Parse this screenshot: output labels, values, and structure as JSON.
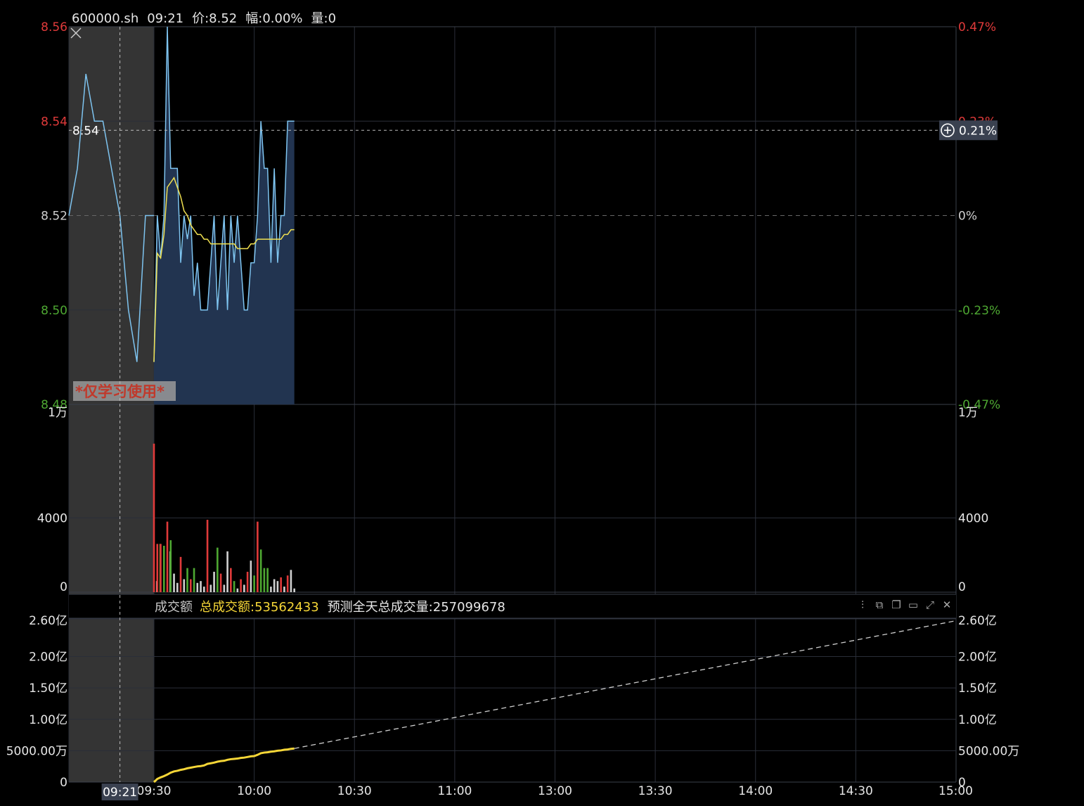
{
  "header": {
    "symbol": "600000.sh",
    "time": "09:21",
    "price_label": "价:8.52",
    "change_label": "幅:0.00%",
    "volume_label": "量:0"
  },
  "watermark": "*仅学习使用*",
  "crosshair": {
    "price_tag": "8.54",
    "pct_tag": "0.21%",
    "time_tag": "09:21"
  },
  "sub_panel": {
    "title": "成交额",
    "total_label": "总成交额:53562433",
    "forecast_label": "预测全天总成交量:257099678",
    "toolbar_icons": [
      "settings-sliders-icon",
      "layout-icon",
      "copy-icon",
      "window-icon",
      "expand-icon",
      "close-icon"
    ]
  },
  "colors": {
    "up": "#e03a3a",
    "down": "#4ea832",
    "price_line": "#7ec4f0",
    "avg_line": "#f0e050",
    "area_fill": "#223450",
    "amount_line": "#f5d637",
    "grid": "#2a2e38",
    "pre_market": "#343434"
  },
  "chart_data": [
    {
      "type": "line",
      "name": "intraday-price",
      "price_axis_labels": [
        {
          "v": 8.56,
          "t": "8.56",
          "c": "up"
        },
        {
          "v": 8.54,
          "t": "8.54",
          "c": "up"
        },
        {
          "v": 8.52,
          "t": "8.52",
          "c": "flat"
        },
        {
          "v": 8.5,
          "t": "8.50",
          "c": "down"
        },
        {
          "v": 8.48,
          "t": "8.48",
          "c": "down"
        }
      ],
      "pct_axis_labels": [
        {
          "v": 8.56,
          "t": "0.47%",
          "c": "up"
        },
        {
          "v": 8.54,
          "t": "0.23%",
          "c": "up"
        },
        {
          "v": 8.52,
          "t": "0%",
          "c": "flat"
        },
        {
          "v": 8.5,
          "t": "-0.23%",
          "c": "down"
        },
        {
          "v": 8.48,
          "t": "-0.47%",
          "c": "down"
        }
      ],
      "ylim": [
        8.48,
        8.56
      ],
      "prev_close": 8.52,
      "x_ticks": [
        "09:30",
        "10:00",
        "10:30",
        "11:00",
        "13:00",
        "13:30",
        "14:00",
        "14:30",
        "15:00"
      ],
      "pre_market_price": [
        [
          "09:15",
          8.52
        ],
        [
          "09:16",
          8.53
        ],
        [
          "09:17",
          8.55
        ],
        [
          "09:18",
          8.54
        ],
        [
          "09:19",
          8.54
        ],
        [
          "09:20",
          8.53
        ],
        [
          "09:21",
          8.52
        ],
        [
          "09:22",
          8.5
        ],
        [
          "09:23",
          8.489
        ],
        [
          "09:24",
          8.52
        ],
        [
          "09:25",
          8.52
        ]
      ],
      "price": [
        [
          "09:30",
          8.489
        ],
        [
          "09:31",
          8.52
        ],
        [
          "09:32",
          8.511
        ],
        [
          "09:33",
          8.52
        ],
        [
          "09:34",
          8.56
        ],
        [
          "09:35",
          8.53
        ],
        [
          "09:36",
          8.53
        ],
        [
          "09:37",
          8.53
        ],
        [
          "09:38",
          8.51
        ],
        [
          "09:39",
          8.52
        ],
        [
          "09:40",
          8.515
        ],
        [
          "09:41",
          8.52
        ],
        [
          "09:42",
          8.503
        ],
        [
          "09:43",
          8.51
        ],
        [
          "09:44",
          8.5
        ],
        [
          "09:45",
          8.5
        ],
        [
          "09:46",
          8.5
        ],
        [
          "09:47",
          8.51
        ],
        [
          "09:48",
          8.52
        ],
        [
          "09:49",
          8.5
        ],
        [
          "09:50",
          8.51
        ],
        [
          "09:51",
          8.52
        ],
        [
          "09:52",
          8.5
        ],
        [
          "09:53",
          8.52
        ],
        [
          "09:54",
          8.51
        ],
        [
          "09:55",
          8.52
        ],
        [
          "09:56",
          8.51
        ],
        [
          "09:57",
          8.5
        ],
        [
          "09:58",
          8.5
        ],
        [
          "09:59",
          8.51
        ],
        [
          "10:00",
          8.51
        ],
        [
          "10:01",
          8.52
        ],
        [
          "10:02",
          8.54
        ],
        [
          "10:03",
          8.53
        ],
        [
          "10:04",
          8.53
        ],
        [
          "10:05",
          8.51
        ],
        [
          "10:06",
          8.53
        ],
        [
          "10:07",
          8.51
        ],
        [
          "10:08",
          8.52
        ],
        [
          "10:09",
          8.52
        ],
        [
          "10:10",
          8.54
        ],
        [
          "10:11",
          8.54
        ],
        [
          "10:12",
          8.54
        ]
      ],
      "avg_price": [
        [
          "09:30",
          8.489
        ],
        [
          "09:31",
          8.512
        ],
        [
          "09:32",
          8.511
        ],
        [
          "09:33",
          8.516
        ],
        [
          "09:34",
          8.526
        ],
        [
          "09:35",
          8.527
        ],
        [
          "09:36",
          8.528
        ],
        [
          "09:37",
          8.526
        ],
        [
          "09:38",
          8.524
        ],
        [
          "09:39",
          8.521
        ],
        [
          "09:40",
          8.52
        ],
        [
          "09:41",
          8.518
        ],
        [
          "09:42",
          8.517
        ],
        [
          "09:43",
          8.516
        ],
        [
          "09:44",
          8.516
        ],
        [
          "09:45",
          8.515
        ],
        [
          "09:46",
          8.515
        ],
        [
          "09:47",
          8.514
        ],
        [
          "09:48",
          8.514
        ],
        [
          "09:49",
          8.514
        ],
        [
          "09:50",
          8.514
        ],
        [
          "09:51",
          8.514
        ],
        [
          "09:52",
          8.514
        ],
        [
          "09:53",
          8.514
        ],
        [
          "09:54",
          8.514
        ],
        [
          "09:55",
          8.513
        ],
        [
          "09:56",
          8.513
        ],
        [
          "09:57",
          8.513
        ],
        [
          "09:58",
          8.513
        ],
        [
          "09:59",
          8.514
        ],
        [
          "10:00",
          8.514
        ],
        [
          "10:01",
          8.515
        ],
        [
          "10:02",
          8.515
        ],
        [
          "10:03",
          8.515
        ],
        [
          "10:04",
          8.515
        ],
        [
          "10:05",
          8.515
        ],
        [
          "10:06",
          8.515
        ],
        [
          "10:07",
          8.515
        ],
        [
          "10:08",
          8.515
        ],
        [
          "10:09",
          8.516
        ],
        [
          "10:10",
          8.516
        ],
        [
          "10:11",
          8.517
        ],
        [
          "10:12",
          8.517
        ]
      ]
    },
    {
      "type": "bar",
      "name": "volume",
      "ylim": [
        0,
        10000
      ],
      "left_labels": [
        {
          "v": 10000,
          "t": "1万"
        },
        {
          "v": 4000,
          "t": "4000"
        },
        {
          "v": 0,
          "t": "0"
        }
      ],
      "right_labels": [
        {
          "v": 10000,
          "t": "1万"
        },
        {
          "v": 4000,
          "t": "4000"
        },
        {
          "v": 0,
          "t": "0"
        }
      ],
      "bars": [
        [
          "09:30",
          8000,
          "up"
        ],
        [
          "09:30",
          600,
          "flat"
        ],
        [
          "09:31",
          2600,
          "up"
        ],
        [
          "09:31",
          2600,
          "down"
        ],
        [
          "09:32",
          2600,
          "up"
        ],
        [
          "09:33",
          2500,
          "down"
        ],
        [
          "09:34",
          3800,
          "up"
        ],
        [
          "09:34",
          2200,
          "flat"
        ],
        [
          "09:35",
          2800,
          "down"
        ],
        [
          "09:36",
          1000,
          "flat"
        ],
        [
          "09:37",
          500,
          "flat"
        ],
        [
          "09:38",
          1900,
          "up"
        ],
        [
          "09:39",
          700,
          "flat"
        ],
        [
          "09:40",
          1300,
          "down"
        ],
        [
          "09:41",
          700,
          "up"
        ],
        [
          "09:42",
          1300,
          "down"
        ],
        [
          "09:43",
          500,
          "flat"
        ],
        [
          "09:44",
          600,
          "flat"
        ],
        [
          "09:45",
          300,
          "flat"
        ],
        [
          "09:46",
          3900,
          "up"
        ],
        [
          "09:47",
          400,
          "flat"
        ],
        [
          "09:48",
          1100,
          "flat"
        ],
        [
          "09:49",
          2400,
          "down"
        ],
        [
          "09:50",
          1000,
          "up"
        ],
        [
          "09:51",
          400,
          "flat"
        ],
        [
          "09:52",
          2200,
          "flat"
        ],
        [
          "09:53",
          1300,
          "up"
        ],
        [
          "09:54",
          600,
          "down"
        ],
        [
          "09:55",
          200,
          "flat"
        ],
        [
          "09:56",
          700,
          "up"
        ],
        [
          "09:57",
          400,
          "flat"
        ],
        [
          "09:58",
          1100,
          "up"
        ],
        [
          "09:59",
          1700,
          "flat"
        ],
        [
          "10:00",
          900,
          "down"
        ],
        [
          "10:01",
          3800,
          "up"
        ],
        [
          "10:02",
          2300,
          "down"
        ],
        [
          "10:03",
          1300,
          "down"
        ],
        [
          "10:04",
          1300,
          "down"
        ],
        [
          "10:05",
          300,
          "flat"
        ],
        [
          "10:06",
          700,
          "flat"
        ],
        [
          "10:07",
          600,
          "flat"
        ],
        [
          "10:08",
          800,
          "up"
        ],
        [
          "10:09",
          300,
          "flat"
        ],
        [
          "10:10",
          900,
          "up"
        ],
        [
          "10:11",
          1200,
          "flat"
        ],
        [
          "10:12",
          200,
          "flat"
        ]
      ]
    },
    {
      "type": "line",
      "name": "cumulative-amount",
      "ylim": [
        0,
        260000000
      ],
      "axis_labels": [
        {
          "v": 260000000,
          "t": "2.60亿"
        },
        {
          "v": 200000000,
          "t": "2.00亿"
        },
        {
          "v": 150000000,
          "t": "1.50亿"
        },
        {
          "v": 100000000,
          "t": "1.00亿"
        },
        {
          "v": 50000000,
          "t": "5000.00万"
        },
        {
          "v": 0,
          "t": "0"
        }
      ],
      "amount": [
        [
          "09:30",
          0
        ],
        [
          "09:31",
          5000000
        ],
        [
          "09:32",
          7500000
        ],
        [
          "09:33",
          9500000
        ],
        [
          "09:34",
          12000000
        ],
        [
          "09:35",
          15000000
        ],
        [
          "09:36",
          17000000
        ],
        [
          "09:37",
          18000000
        ],
        [
          "09:38",
          19500000
        ],
        [
          "09:39",
          20500000
        ],
        [
          "09:40",
          22000000
        ],
        [
          "09:41",
          23000000
        ],
        [
          "09:42",
          24000000
        ],
        [
          "09:43",
          25000000
        ],
        [
          "09:44",
          25500000
        ],
        [
          "09:45",
          26500000
        ],
        [
          "09:46",
          29000000
        ],
        [
          "09:47",
          30000000
        ],
        [
          "09:48",
          31000000
        ],
        [
          "09:49",
          32500000
        ],
        [
          "09:50",
          33500000
        ],
        [
          "09:51",
          34000000
        ],
        [
          "09:52",
          35500000
        ],
        [
          "09:53",
          36500000
        ],
        [
          "09:54",
          37000000
        ],
        [
          "09:55",
          37500000
        ],
        [
          "09:56",
          38500000
        ],
        [
          "09:57",
          39000000
        ],
        [
          "09:58",
          40000000
        ],
        [
          "09:59",
          41000000
        ],
        [
          "10:00",
          41500000
        ],
        [
          "10:01",
          43500000
        ],
        [
          "10:02",
          46000000
        ],
        [
          "10:03",
          47000000
        ],
        [
          "10:04",
          47500000
        ],
        [
          "10:05",
          48500000
        ],
        [
          "10:06",
          49000000
        ],
        [
          "10:07",
          50000000
        ],
        [
          "10:08",
          50500000
        ],
        [
          "10:09",
          51500000
        ],
        [
          "10:10",
          52000000
        ],
        [
          "10:11",
          53000000
        ],
        [
          "10:12",
          53562433
        ]
      ],
      "forecast": [
        [
          "10:12",
          53562433
        ],
        [
          "15:00",
          257099678
        ]
      ]
    }
  ]
}
